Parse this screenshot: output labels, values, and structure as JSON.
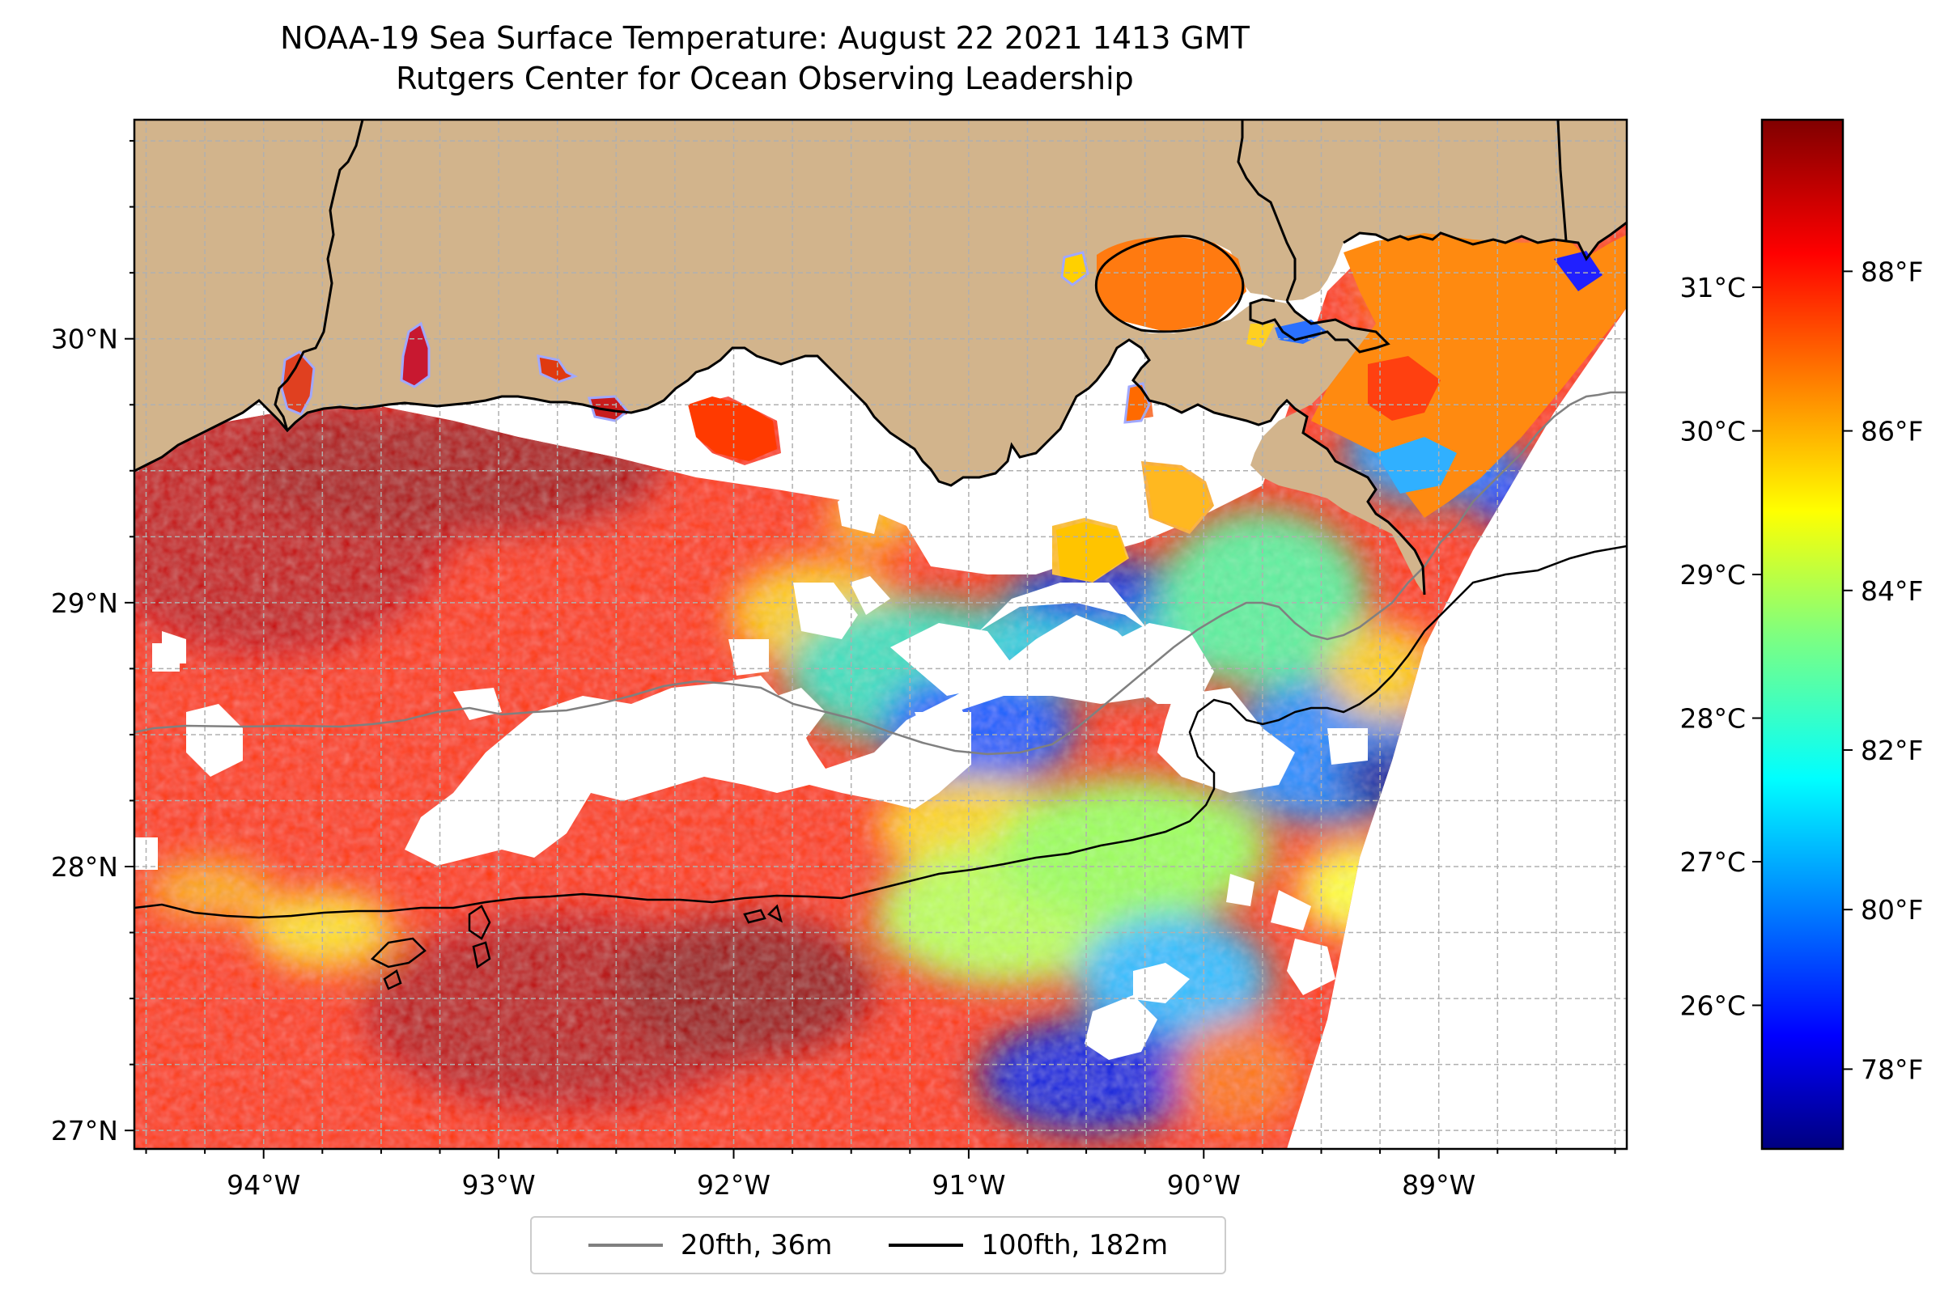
{
  "title": {
    "line1": "NOAA-19 Sea Surface Temperature: August 22 2021 1413 GMT",
    "line2": "Rutgers Center for Ocean Observing Leadership"
  },
  "map": {
    "lon_range": [
      -94.55,
      -88.2
    ],
    "lat_range": [
      26.93,
      30.83
    ],
    "lon_ticks": [
      {
        "value": -94,
        "label": "94°W"
      },
      {
        "value": -93,
        "label": "93°W"
      },
      {
        "value": -92,
        "label": "92°W"
      },
      {
        "value": -91,
        "label": "91°W"
      },
      {
        "value": -90,
        "label": "90°W"
      },
      {
        "value": -89,
        "label": "89°W"
      }
    ],
    "lat_ticks": [
      {
        "value": 27,
        "label": "27°N"
      },
      {
        "value": 28,
        "label": "28°N"
      },
      {
        "value": 29,
        "label": "29°N"
      },
      {
        "value": 30,
        "label": "30°N"
      }
    ],
    "grid": "dashed, every 0.25°",
    "colors": {
      "land": "#d2b48c",
      "no_data": "#ffffff",
      "isobath_20fth": "#808080",
      "isobath_100fth": "#000000"
    }
  },
  "colorbar": {
    "colormap": "jet",
    "range_f": [
      77.0,
      89.9
    ],
    "celsius_ticks": [
      {
        "value": 26,
        "label": "26°C"
      },
      {
        "value": 27,
        "label": "27°C"
      },
      {
        "value": 28,
        "label": "28°C"
      },
      {
        "value": 29,
        "label": "29°C"
      },
      {
        "value": 30,
        "label": "30°C"
      },
      {
        "value": 31,
        "label": "31°C"
      }
    ],
    "fahrenheit_ticks": [
      {
        "value": 78,
        "label": "78°F"
      },
      {
        "value": 80,
        "label": "80°F"
      },
      {
        "value": 82,
        "label": "82°F"
      },
      {
        "value": 84,
        "label": "84°F"
      },
      {
        "value": 86,
        "label": "86°F"
      },
      {
        "value": 88,
        "label": "88°F"
      }
    ]
  },
  "legend": {
    "location": "bottom-center",
    "items": [
      {
        "label": "20fth, 36m",
        "color": "#808080"
      },
      {
        "label": "100fth, 182m",
        "color": "#000000"
      }
    ]
  }
}
